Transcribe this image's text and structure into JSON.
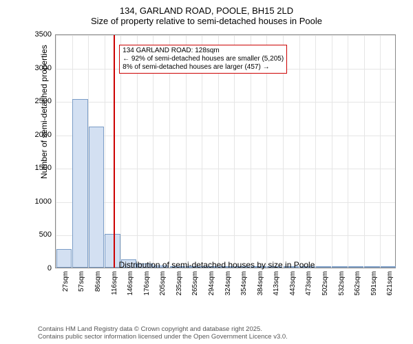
{
  "title_main": "134, GARLAND ROAD, POOLE, BH15 2LD",
  "title_sub": "Size of property relative to semi-detached houses in Poole",
  "ylabel": "Number of semi-detached properties",
  "xlabel": "Distribution of semi-detached houses by size in Poole",
  "footer_line1": "Contains HM Land Registry data © Crown copyright and database right 2025.",
  "footer_line2": "Contains public sector information licensed under the Open Government Licence v3.0.",
  "annotation": {
    "line1": "134 GARLAND ROAD: 128sqm",
    "line2": "← 92% of semi-detached houses are smaller (5,205)",
    "line3": "8% of semi-detached houses are larger (457) →"
  },
  "chart": {
    "type": "bar",
    "ylim": [
      0,
      3500
    ],
    "ytick_step": 500,
    "yticks": [
      "0",
      "500",
      "1000",
      "1500",
      "2000",
      "2500",
      "3000",
      "3500"
    ],
    "xticks": [
      "27sqm",
      "57sqm",
      "86sqm",
      "116sqm",
      "146sqm",
      "176sqm",
      "205sqm",
      "235sqm",
      "265sqm",
      "294sqm",
      "324sqm",
      "354sqm",
      "384sqm",
      "413sqm",
      "443sqm",
      "473sqm",
      "502sqm",
      "532sqm",
      "562sqm",
      "591sqm",
      "621sqm"
    ],
    "values": [
      280,
      2520,
      2110,
      500,
      120,
      60,
      35,
      25,
      18,
      20,
      10,
      5,
      5,
      5,
      3,
      3,
      2,
      2,
      2,
      2,
      1
    ],
    "bar_fill": "#d3e0f2",
    "bar_border": "#7a9cc6",
    "bar_width": 0.95,
    "vline_value_sqm": 128,
    "vline_color": "#cc0000",
    "annotation_border": "#cc0000",
    "background_color": "#ffffff",
    "grid_color": "#e5e5e5",
    "axis_color": "#888888",
    "title_fontsize": 13,
    "label_fontsize": 12,
    "tick_fontsize": 11,
    "xtick_fontsize": 10,
    "annot_fontsize": 10,
    "footer_fontsize": 9.5,
    "footer_color": "#555555"
  }
}
